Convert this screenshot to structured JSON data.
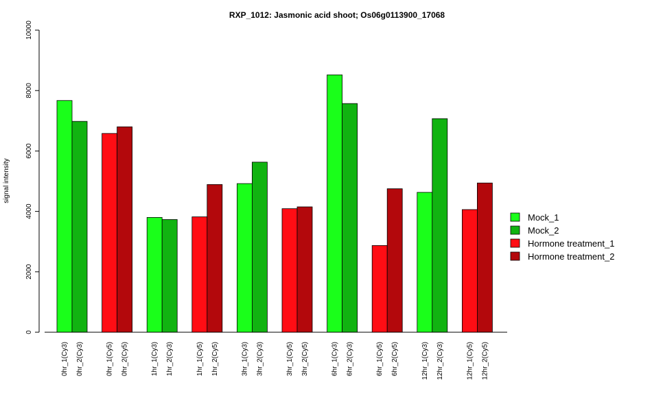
{
  "chart_data": {
    "type": "bar",
    "title": "RXP_1012: Jasmonic acid shoot; Os06g0113900_17068",
    "xlabel": "",
    "ylabel": "signal intensity",
    "ylim": [
      0,
      10000
    ],
    "yticks": [
      0,
      2000,
      4000,
      6000,
      8000,
      10000
    ],
    "grid": false,
    "legend_position": "right",
    "groups": [
      {
        "labels": [
          "0hr_1(Cy3)",
          "0hr_2(Cy3)"
        ],
        "values": [
          7670,
          6980
        ],
        "series": [
          "Mock_1",
          "Mock_2"
        ]
      },
      {
        "labels": [
          "0hr_1(Cy5)",
          "0hr_2(Cy5)"
        ],
        "values": [
          6580,
          6800
        ],
        "series": [
          "Hormone treatment_1",
          "Hormone treatment_2"
        ]
      },
      {
        "labels": [
          "1hr_1(Cy3)",
          "1hr_2(Cy3)"
        ],
        "values": [
          3800,
          3730
        ],
        "series": [
          "Mock_1",
          "Mock_2"
        ]
      },
      {
        "labels": [
          "1hr_1(Cy5)",
          "1hr_2(Cy5)"
        ],
        "values": [
          3820,
          4890
        ],
        "series": [
          "Hormone treatment_1",
          "Hormone treatment_2"
        ]
      },
      {
        "labels": [
          "3hr_1(Cy3)",
          "3hr_2(Cy3)"
        ],
        "values": [
          4920,
          5630
        ],
        "series": [
          "Mock_1",
          "Mock_2"
        ]
      },
      {
        "labels": [
          "3hr_1(Cy5)",
          "3hr_2(Cy5)"
        ],
        "values": [
          4090,
          4150
        ],
        "series": [
          "Hormone treatment_1",
          "Hormone treatment_2"
        ]
      },
      {
        "labels": [
          "6hr_1(Cy3)",
          "6hr_2(Cy3)"
        ],
        "values": [
          8520,
          7570
        ],
        "series": [
          "Mock_1",
          "Mock_2"
        ]
      },
      {
        "labels": [
          "6hr_1(Cy5)",
          "6hr_2(Cy5)"
        ],
        "values": [
          2870,
          4750
        ],
        "series": [
          "Hormone treatment_1",
          "Hormone treatment_2"
        ]
      },
      {
        "labels": [
          "12hr_1(Cy3)",
          "12hr_2(Cy3)"
        ],
        "values": [
          4630,
          7070
        ],
        "series": [
          "Mock_1",
          "Mock_2"
        ]
      },
      {
        "labels": [
          "12hr_1(Cy5)",
          "12hr_2(Cy5)"
        ],
        "values": [
          4060,
          4940
        ],
        "series": [
          "Hormone treatment_1",
          "Hormone treatment_2"
        ]
      }
    ],
    "legend": [
      {
        "name": "Mock_1",
        "color": "#1aff1a"
      },
      {
        "name": "Mock_2",
        "color": "#11b311"
      },
      {
        "name": "Hormone treatment_1",
        "color": "#ff0d14"
      },
      {
        "name": "Hormone treatment_2",
        "color": "#b3080c"
      }
    ]
  }
}
